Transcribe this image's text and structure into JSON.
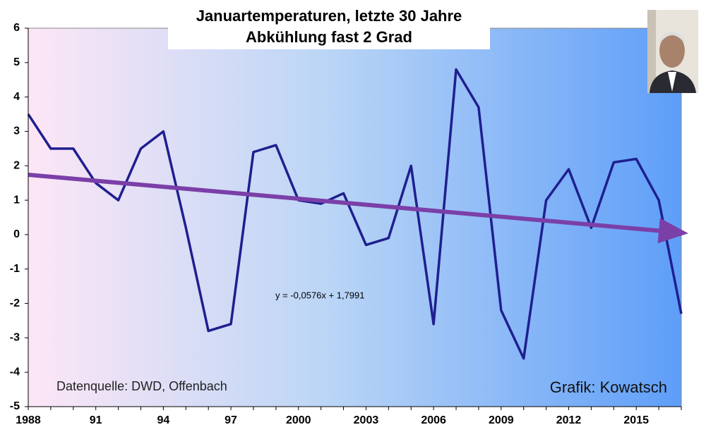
{
  "chart_data": {
    "type": "line",
    "title": "Januartemperaturen,  letzte 30 Jahre",
    "subtitle": "Abkühlung  fast 2 Grad",
    "categories": [
      "1988",
      null,
      null,
      "91",
      null,
      null,
      "94",
      null,
      null,
      "97",
      null,
      null,
      "2000",
      null,
      null,
      "2003",
      null,
      null,
      "2006",
      null,
      null,
      "2009",
      null,
      null,
      "2012",
      null,
      null,
      "2015",
      null,
      null
    ],
    "series": [
      {
        "color": "#1f1f8f",
        "values": [
          3.5,
          2.5,
          2.5,
          1.5,
          1.0,
          2.5,
          3.0,
          0.2,
          -2.8,
          -2.6,
          2.4,
          2.6,
          1.0,
          0.9,
          1.2,
          -0.3,
          -0.1,
          2.0,
          -2.6,
          4.8,
          3.7,
          -2.2,
          -3.6,
          1.0,
          1.9,
          0.2,
          2.1,
          2.2,
          1.0,
          -2.3
        ]
      }
    ],
    "trendline": {
      "equation": "y = -0,0576x + 1,7991",
      "color": "#7b3fa8",
      "start": 1.74,
      "end": 0.07
    },
    "ylim": [
      -5,
      6
    ],
    "yticks": [
      -5,
      -4,
      -3,
      -2,
      -1,
      0,
      1,
      2,
      3,
      4,
      5,
      6
    ],
    "annotations": [
      "Datenquelle: DWD, Offenbach",
      "Grafik: Kowatsch"
    ]
  }
}
